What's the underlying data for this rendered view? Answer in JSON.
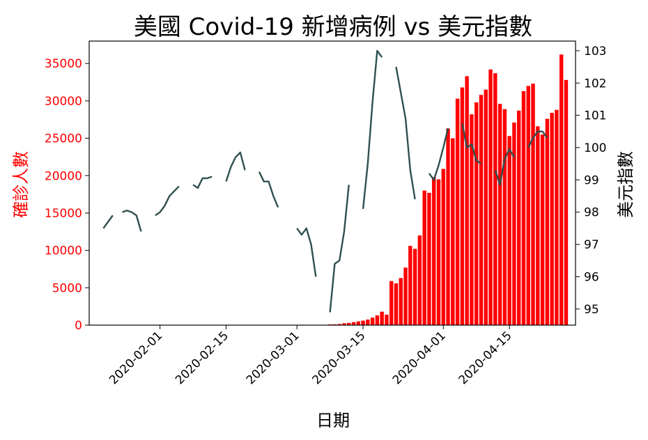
{
  "chart_data": {
    "type": "bar+line",
    "title": "美國 Covid-19 新增病例 vs 美元指數",
    "xlabel": "日期",
    "ylabel_left": "確診人數",
    "ylabel_right": "美元指數",
    "x_tick_labels": [
      "2020-02-01",
      "2020-02-15",
      "2020-03-01",
      "2020-03-15",
      "2020-04-01",
      "2020-04-15"
    ],
    "left_ticks": [
      "0",
      "5000",
      "10000",
      "15000",
      "20000",
      "25000",
      "30000",
      "35000"
    ],
    "right_ticks": [
      "95",
      "96",
      "97",
      "98",
      "99",
      "100",
      "101",
      "102",
      "103"
    ],
    "ylim_left": [
      0,
      38000
    ],
    "ylim_right": [
      94.5,
      103.3
    ],
    "xlim": [
      "2020-01-17",
      "2020-04-29"
    ],
    "grid": false,
    "colors": {
      "bars": "#ff0000",
      "line": "#2f4f4f",
      "left_axis_text": "#ff0000"
    },
    "series": [
      {
        "type": "bar",
        "axis": "left",
        "points": [
          [
            "2020-03-08",
            100
          ],
          [
            "2020-03-09",
            110
          ],
          [
            "2020-03-10",
            150
          ],
          [
            "2020-03-11",
            250
          ],
          [
            "2020-03-12",
            300
          ],
          [
            "2020-03-13",
            400
          ],
          [
            "2020-03-14",
            500
          ],
          [
            "2020-03-15",
            600
          ],
          [
            "2020-03-16",
            750
          ],
          [
            "2020-03-17",
            1000
          ],
          [
            "2020-03-18",
            1300
          ],
          [
            "2020-03-19",
            1800
          ],
          [
            "2020-03-20",
            1400
          ],
          [
            "2020-03-21",
            5900
          ],
          [
            "2020-03-22",
            5600
          ],
          [
            "2020-03-23",
            6300
          ],
          [
            "2020-03-24",
            7700
          ],
          [
            "2020-03-25",
            10600
          ],
          [
            "2020-03-26",
            10200
          ],
          [
            "2020-03-27",
            12000
          ],
          [
            "2020-03-28",
            18000
          ],
          [
            "2020-03-29",
            17700
          ],
          [
            "2020-03-30",
            19800
          ],
          [
            "2020-03-31",
            19500
          ],
          [
            "2020-04-01",
            20900
          ],
          [
            "2020-04-02",
            26300
          ],
          [
            "2020-04-03",
            25000
          ],
          [
            "2020-04-04",
            30300
          ],
          [
            "2020-04-05",
            31800
          ],
          [
            "2020-04-06",
            33300
          ],
          [
            "2020-04-07",
            28200
          ],
          [
            "2020-04-08",
            29800
          ],
          [
            "2020-04-09",
            30800
          ],
          [
            "2020-04-10",
            31500
          ],
          [
            "2020-04-11",
            34200
          ],
          [
            "2020-04-12",
            33700
          ],
          [
            "2020-04-13",
            29600
          ],
          [
            "2020-04-14",
            28900
          ],
          [
            "2020-04-15",
            25300
          ],
          [
            "2020-04-16",
            27100
          ],
          [
            "2020-04-17",
            28700
          ],
          [
            "2020-04-18",
            31300
          ],
          [
            "2020-04-19",
            32000
          ],
          [
            "2020-04-20",
            32300
          ],
          [
            "2020-04-21",
            26600
          ],
          [
            "2020-04-22",
            25500
          ],
          [
            "2020-04-23",
            27600
          ],
          [
            "2020-04-24",
            28400
          ],
          [
            "2020-04-25",
            28800
          ],
          [
            "2020-04-26",
            36200
          ],
          [
            "2020-04-27",
            32800
          ]
        ]
      },
      {
        "type": "line",
        "axis": "right",
        "segments": [
          [
            [
              "2020-01-20",
              97.5
            ],
            [
              "2020-01-21",
              97.7
            ],
            [
              "2020-01-22",
              97.9
            ]
          ],
          [
            [
              "2020-01-24",
              98.0
            ],
            [
              "2020-01-25",
              98.05
            ],
            [
              "2020-01-26",
              98.0
            ],
            [
              "2020-01-27",
              97.9
            ],
            [
              "2020-01-28",
              97.4
            ]
          ],
          [
            [
              "2020-01-31",
              97.9
            ],
            [
              "2020-02-01",
              98.0
            ],
            [
              "2020-02-02",
              98.2
            ],
            [
              "2020-02-03",
              98.5
            ],
            [
              "2020-02-04",
              98.65
            ],
            [
              "2020-02-05",
              98.8
            ]
          ],
          [
            [
              "2020-02-08",
              98.85
            ],
            [
              "2020-02-09",
              98.75
            ],
            [
              "2020-02-10",
              99.05
            ],
            [
              "2020-02-11",
              99.05
            ],
            [
              "2020-02-12",
              99.1
            ]
          ],
          [
            [
              "2020-02-15",
              98.95
            ],
            [
              "2020-02-16",
              99.4
            ],
            [
              "2020-02-17",
              99.7
            ],
            [
              "2020-02-18",
              99.85
            ],
            [
              "2020-02-19",
              99.3
            ]
          ],
          [
            [
              "2020-02-22",
              99.25
            ],
            [
              "2020-02-23",
              98.95
            ],
            [
              "2020-02-24",
              98.95
            ],
            [
              "2020-02-25",
              98.5
            ],
            [
              "2020-02-26",
              98.15
            ]
          ],
          [
            [
              "2020-03-01",
              97.5
            ],
            [
              "2020-03-02",
              97.3
            ],
            [
              "2020-03-03",
              97.5
            ],
            [
              "2020-03-04",
              97.0
            ],
            [
              "2020-03-05",
              96.0
            ]
          ],
          [
            [
              "2020-03-08",
              94.9
            ],
            [
              "2020-03-09",
              96.4
            ],
            [
              "2020-03-10",
              96.5
            ],
            [
              "2020-03-11",
              97.4
            ],
            [
              "2020-03-12",
              98.85
            ]
          ],
          [
            [
              "2020-03-15",
              98.1
            ],
            [
              "2020-03-16",
              99.5
            ],
            [
              "2020-03-17",
              101.4
            ],
            [
              "2020-03-18",
              103.0
            ],
            [
              "2020-03-19",
              102.8
            ]
          ],
          [
            [
              "2020-03-22",
              102.5
            ],
            [
              "2020-03-23",
              101.7
            ],
            [
              "2020-03-24",
              100.9
            ],
            [
              "2020-03-25",
              99.3
            ],
            [
              "2020-03-26",
              98.4
            ]
          ],
          [
            [
              "2020-03-29",
              99.2
            ],
            [
              "2020-03-30",
              99.0
            ],
            [
              "2020-03-31",
              99.45
            ],
            [
              "2020-04-01",
              100.0
            ],
            [
              "2020-04-02",
              100.6
            ]
          ],
          [
            [
              "2020-04-05",
              100.75
            ],
            [
              "2020-04-06",
              100.0
            ],
            [
              "2020-04-07",
              100.1
            ],
            [
              "2020-04-08",
              99.6
            ],
            [
              "2020-04-09",
              99.5
            ]
          ],
          [
            [
              "2020-04-12",
              99.3
            ],
            [
              "2020-04-13",
              98.85
            ],
            [
              "2020-04-14",
              99.65
            ],
            [
              "2020-04-15",
              99.95
            ],
            [
              "2020-04-16",
              99.7
            ]
          ],
          [
            [
              "2020-04-19",
              100.0
            ],
            [
              "2020-04-20",
              100.3
            ],
            [
              "2020-04-21",
              100.5
            ],
            [
              "2020-04-22",
              100.5
            ],
            [
              "2020-04-23",
              100.3
            ]
          ]
        ]
      }
    ]
  }
}
